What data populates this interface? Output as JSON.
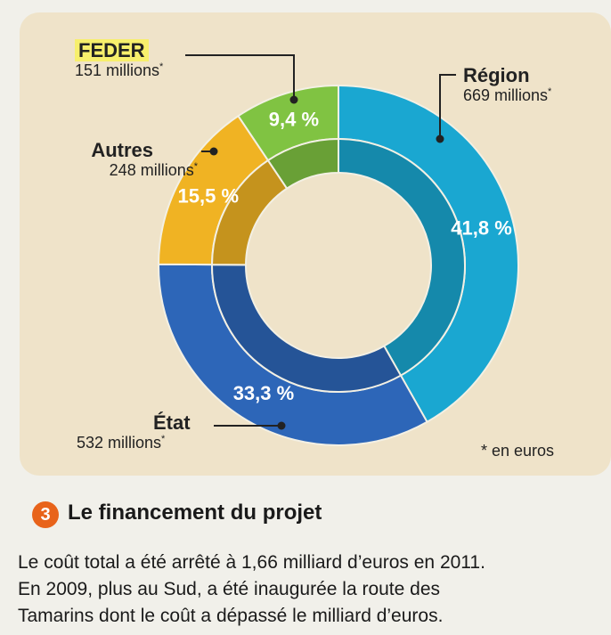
{
  "chart_data": {
    "type": "pie",
    "donut": true,
    "unit_note": "* en euros",
    "slices": [
      {
        "name": "Région",
        "value_millions": 669,
        "amount_text": "669 millions",
        "percent": 41.8,
        "percent_text": "41,8 %",
        "color": "#1aa7d1"
      },
      {
        "name": "État",
        "value_millions": 532,
        "amount_text": "532 millions",
        "percent": 33.3,
        "percent_text": "33,3 %",
        "color": "#2d66b8"
      },
      {
        "name": "Autres",
        "value_millions": 248,
        "amount_text": "248 millions",
        "percent": 15.5,
        "percent_text": "15,5 %",
        "color": "#f0b323"
      },
      {
        "name": "FEDER",
        "value_millions": 151,
        "amount_text": "151 millions",
        "percent": 9.4,
        "percent_text": "9,4 %",
        "color": "#80c342"
      }
    ]
  },
  "legend_star": "*",
  "section": {
    "number": "3",
    "title": "Le financement du projet",
    "lines": [
      "Le coût total a été arrêté à 1,66 milliard d’euros en 2011.",
      "En 2009, plus au Sud, a été inaugurée la route des",
      "Tamarins dont le coût a dépassé le milliard d’euros."
    ]
  }
}
